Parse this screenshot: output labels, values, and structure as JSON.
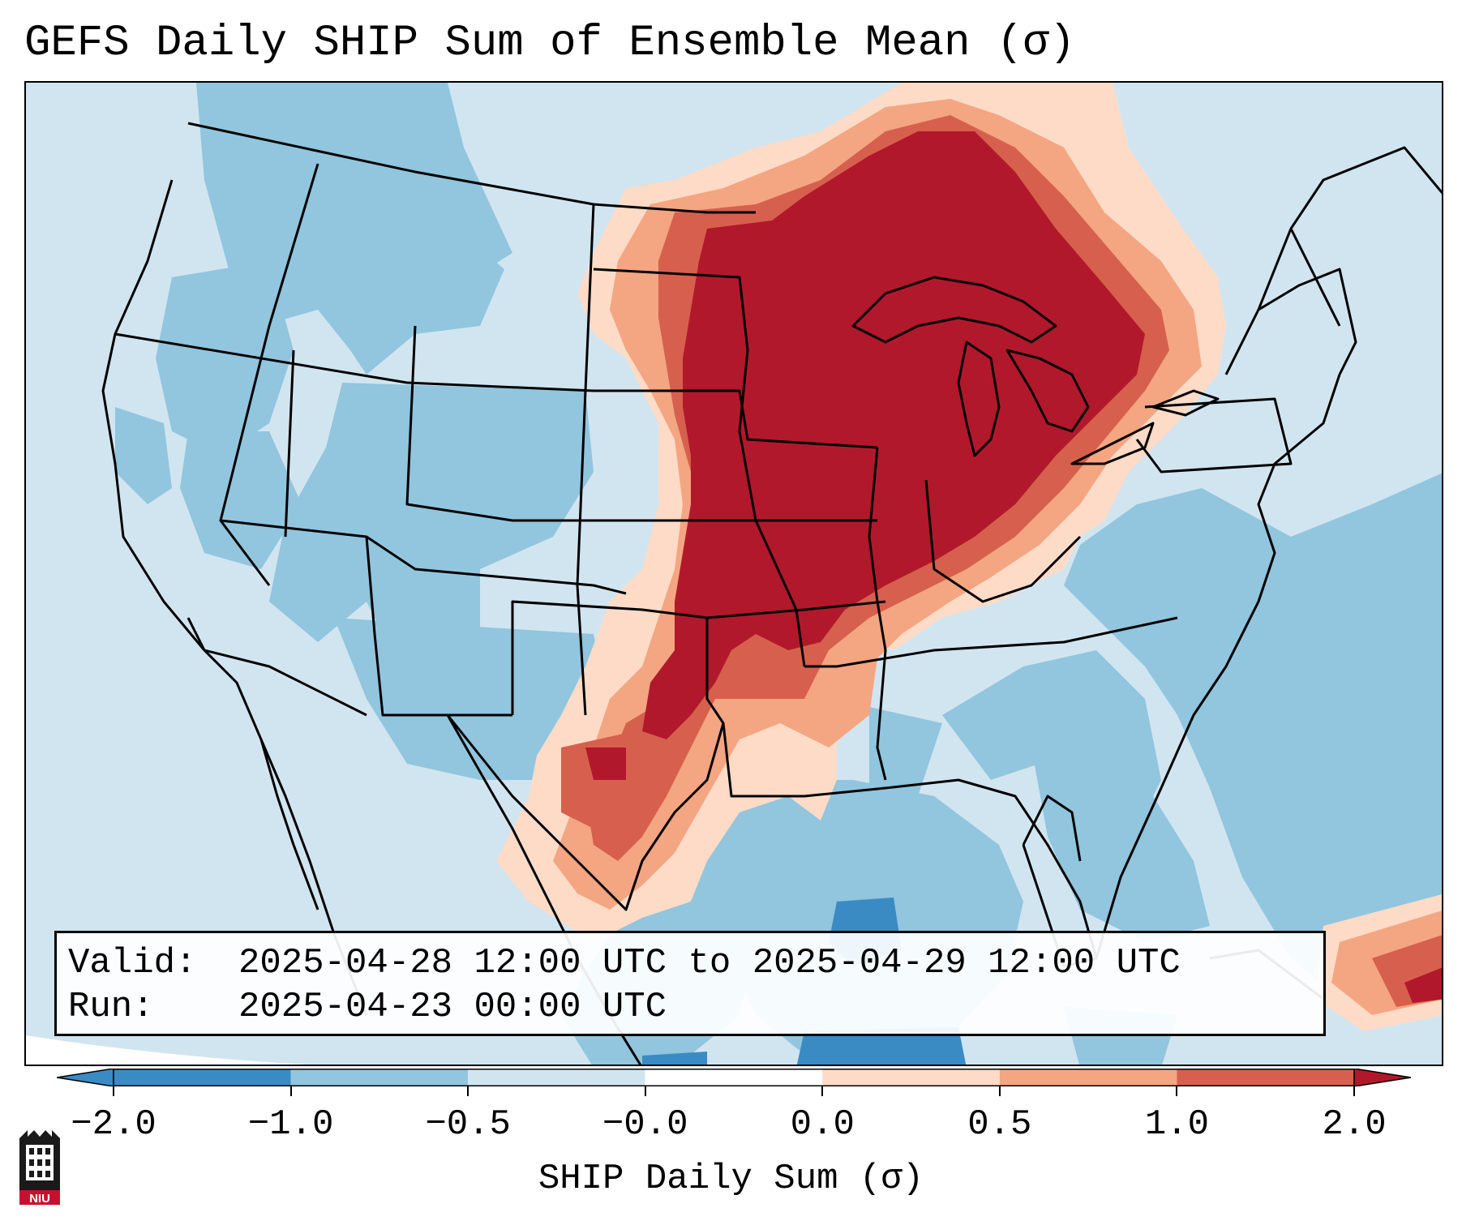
{
  "title": "GEFS Daily SHIP Sum of Ensemble Mean (σ)",
  "info": {
    "valid_label": "Valid:",
    "valid_value": "2025-04-28 12:00 UTC to 2025-04-29 12:00 UTC",
    "run_label": "Run:",
    "run_value": "2025-04-23 00:00 UTC"
  },
  "colorbar": {
    "label": "SHIP Daily Sum (σ)",
    "ticks": [
      "−2.0",
      "−1.0",
      "−0.5",
      "−0.0",
      "0.0",
      "0.5",
      "1.0",
      "2.0"
    ],
    "colors": [
      "#3a8bc4",
      "#92c5de",
      "#d1e5f0",
      "#ffffff",
      "#fddbc7",
      "#f4a582",
      "#d6604d",
      "#b2182b"
    ],
    "extend": "both"
  },
  "map": {
    "region": "Contiguous United States",
    "colors": {
      "strong_positive": "#b2182b",
      "positive": "#d6604d",
      "weak_positive": "#f4a582",
      "slight_positive": "#fddbc7",
      "slight_negative": "#d1e5f0",
      "negative": "#92c5de",
      "strong_negative": "#3a8bc4",
      "outside": "#ffffff",
      "borders": "#000000"
    }
  },
  "logo": {
    "text": "NIU",
    "color": "#c8102e"
  }
}
